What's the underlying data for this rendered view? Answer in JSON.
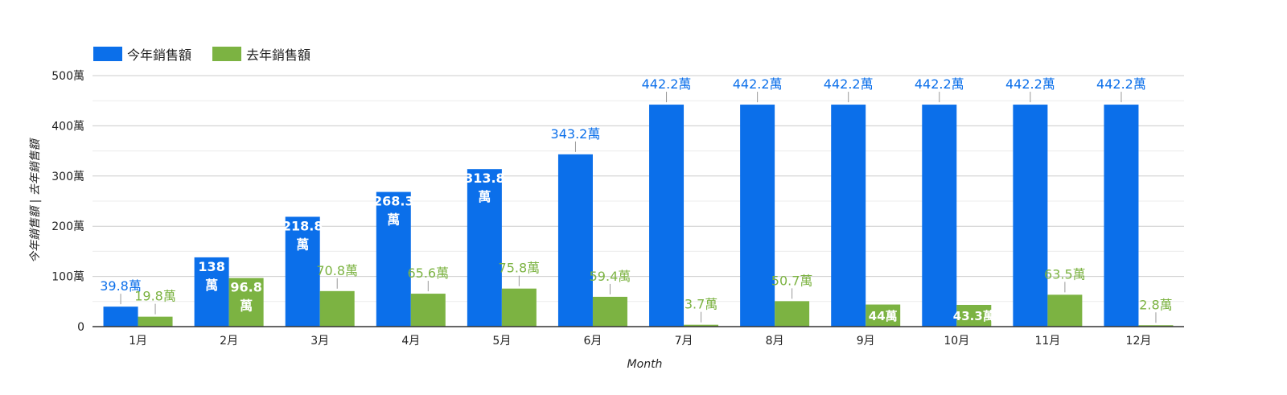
{
  "legend": {
    "items": [
      {
        "label": "今年銷售額",
        "color": "#0b6fea"
      },
      {
        "label": "去年銷售額",
        "color": "#7cb342"
      }
    ]
  },
  "chart_data": {
    "type": "bar",
    "title": "",
    "xlabel": "Month",
    "ylabel": "今年銷售額 | 去年銷售額",
    "categories": [
      "1月",
      "2月",
      "3月",
      "4月",
      "5月",
      "6月",
      "7月",
      "8月",
      "9月",
      "10月",
      "11月",
      "12月"
    ],
    "ylim": [
      0,
      500
    ],
    "yticks": [
      {
        "value": 0,
        "label": "0"
      },
      {
        "value": 100,
        "label": "100萬"
      },
      {
        "value": 200,
        "label": "200萬"
      },
      {
        "value": 300,
        "label": "300萬"
      },
      {
        "value": 400,
        "label": "400萬"
      },
      {
        "value": 500,
        "label": "500萬"
      }
    ],
    "grid": true,
    "legend_position": "top-left",
    "series": [
      {
        "name": "今年銷售額",
        "color": "#0b6fea",
        "values": [
          39.8,
          138,
          218.8,
          268.3,
          313.8,
          343.2,
          442.2,
          442.2,
          442.2,
          442.2,
          442.2,
          442.2
        ],
        "labels": [
          "39.8萬",
          "138萬",
          "218.8萬",
          "268.3萬",
          "313.8萬",
          "343.2萬",
          "442.2萬",
          "442.2萬",
          "442.2萬",
          "442.2萬",
          "442.2萬",
          "442.2萬"
        ]
      },
      {
        "name": "去年銷售額",
        "color": "#7cb342",
        "values": [
          19.8,
          96.8,
          70.8,
          65.6,
          75.8,
          59.4,
          3.7,
          50.7,
          44,
          43.3,
          63.5,
          2.8
        ],
        "labels": [
          "19.8萬",
          "96.8萬",
          "70.8萬",
          "65.6萬",
          "75.8萬",
          "59.4萬",
          "3.7萬",
          "50.7萬",
          "44萬",
          "43.3萬",
          "63.5萬",
          "2.8萬"
        ]
      }
    ]
  }
}
